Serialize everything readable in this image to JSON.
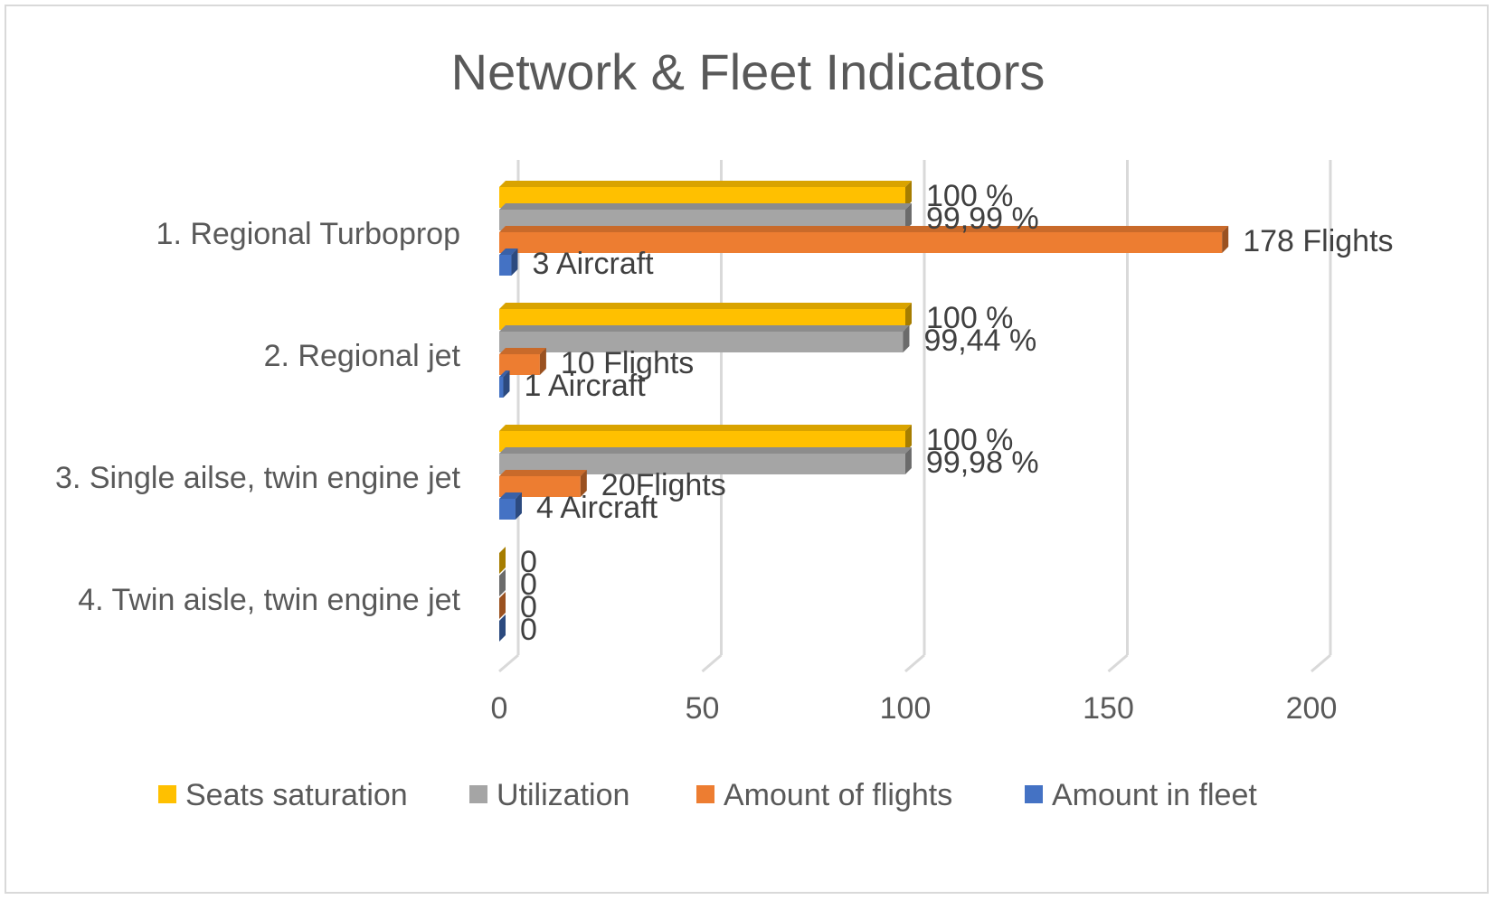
{
  "chart_data": {
    "type": "bar",
    "orientation": "horizontal",
    "title": "Network & Fleet Indicators",
    "categories": [
      "1. Regional Turboprop",
      "2. Regional jet",
      "3. Single ailse, twin engine jet",
      "4. Twin aisle, twin engine jet"
    ],
    "xlim": [
      0,
      200
    ],
    "xticks": [
      "0",
      "50",
      "100",
      "150",
      "200"
    ],
    "grid": true,
    "legend_position": "bottom",
    "series": [
      {
        "name": "Seats saturation",
        "color": "#FFC000",
        "values": [
          100,
          100,
          100,
          0
        ],
        "labels": [
          "100 %",
          "100 %",
          "100 %",
          "0"
        ]
      },
      {
        "name": "Utilization",
        "color": "#A5A5A5",
        "values": [
          99.99,
          99.44,
          99.98,
          0
        ],
        "labels": [
          "99,99 %",
          "99,44 %",
          "99,98 %",
          "0"
        ]
      },
      {
        "name": "Amount of flights",
        "color": "#ED7D31",
        "values": [
          178,
          10,
          20,
          0
        ],
        "labels": [
          "178 Flights",
          "10 Flights",
          "20Flights",
          "0"
        ]
      },
      {
        "name": "Amount in fleet",
        "color": "#4472C4",
        "values": [
          3,
          1,
          4,
          0
        ],
        "labels": [
          "3 Aircraft",
          "1 Aircraft",
          "4 Aircraft",
          "0"
        ]
      }
    ]
  }
}
